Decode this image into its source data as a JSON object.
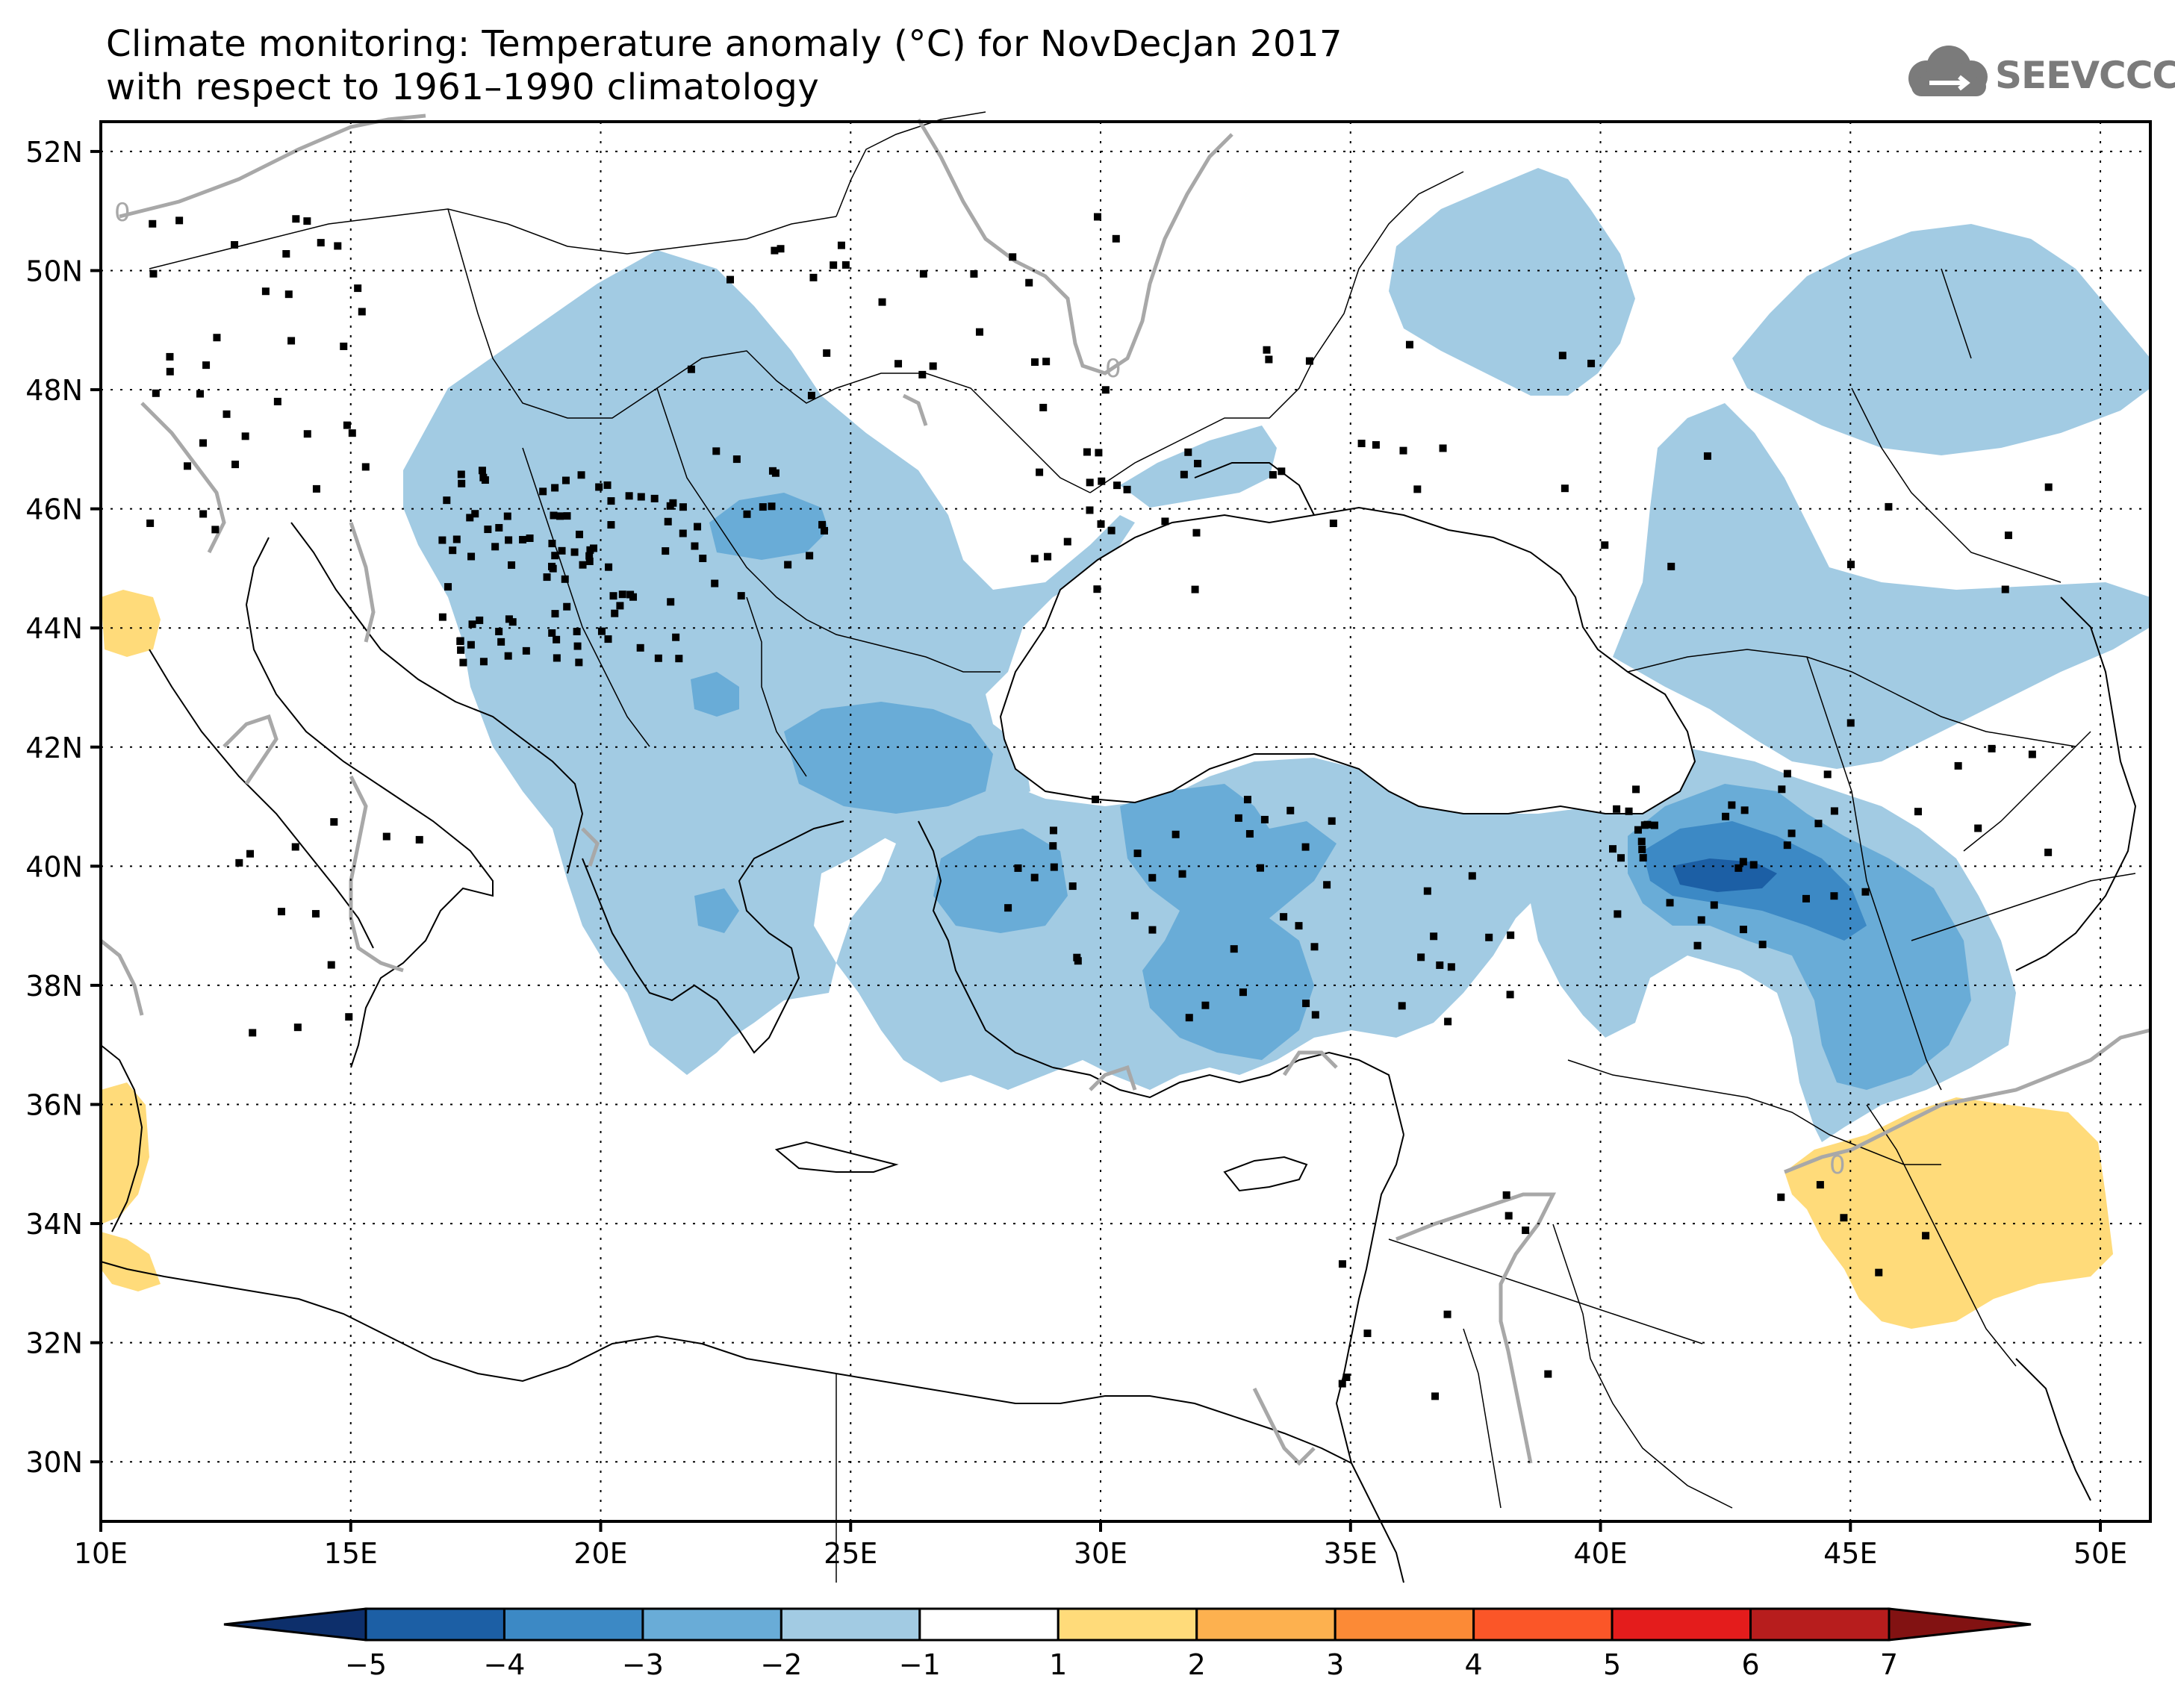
{
  "title": {
    "line1": "Climate monitoring: Temperature anomaly (°C) for NovDecJan 2017",
    "line2": "with respect to 1961–1990 climatology"
  },
  "logo": {
    "text": "SEEVCCC",
    "icon": "cloud-icon"
  },
  "axes": {
    "lat_labels": [
      "52N",
      "50N",
      "48N",
      "46N",
      "44N",
      "42N",
      "40N",
      "38N",
      "36N",
      "34N",
      "32N",
      "30N"
    ],
    "lon_labels": [
      "10E",
      "15E",
      "20E",
      "25E",
      "30E",
      "35E",
      "40E",
      "45E",
      "50E"
    ]
  },
  "contour_label": "0",
  "colorbar": {
    "labels": [
      "−5",
      "−4",
      "−3",
      "−2",
      "−1",
      "1",
      "2",
      "3",
      "4",
      "5",
      "6",
      "7"
    ],
    "colors": [
      "#0d2f6b",
      "#1c5fa5",
      "#3c89c5",
      "#69acd7",
      "#a2cbe3",
      "#ffffff",
      "#ffdb7a",
      "#fdb14f",
      "#fc8a36",
      "#fb5628",
      "#e41c1c",
      "#b71d1d",
      "#821212"
    ]
  },
  "anomaly_colors": {
    "m1": "#a2cbe3",
    "m2": "#69acd7",
    "m3": "#3c89c5",
    "m4": "#1c5fa5",
    "p1": "#ffdb7a"
  }
}
